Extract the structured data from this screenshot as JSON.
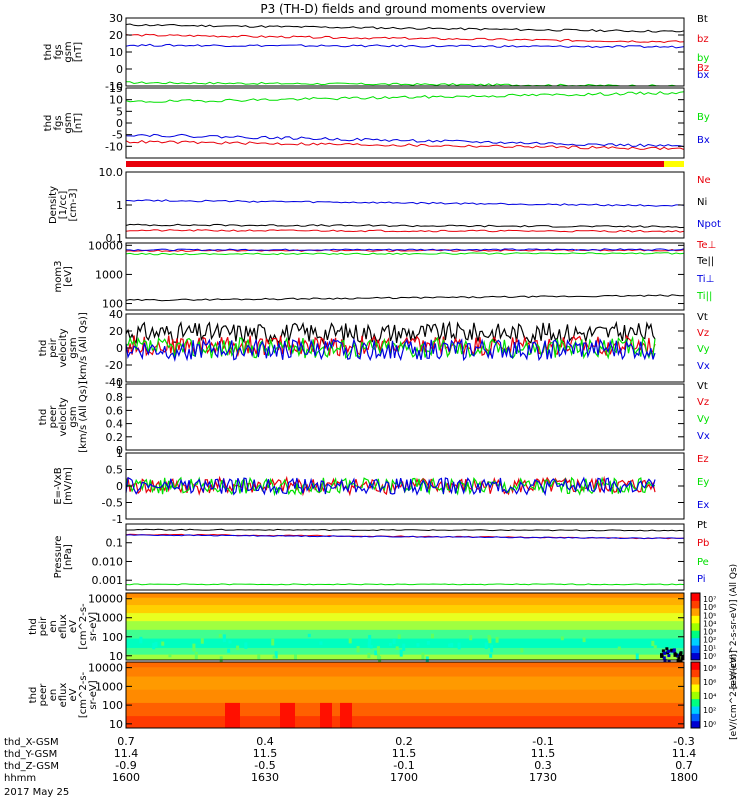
{
  "title": "P3 (TH-D) fields and ground moments overview",
  "colors": {
    "black": "#000000",
    "red": "#e8000b",
    "green": "#00e000",
    "blue": "#0000e0",
    "yellow": "#ffff00"
  },
  "chart_data": [
    {
      "type": "line",
      "id": "p1",
      "ylabel": [
        "thd",
        "fgs",
        "gsm",
        "[nT]"
      ],
      "ylim": [
        -10,
        30
      ],
      "yticks": [
        -10,
        0,
        10,
        20,
        30
      ],
      "series": [
        {
          "name": "Bt",
          "color": "black",
          "start": 26,
          "end": 22
        },
        {
          "name": "bz",
          "color": "red",
          "start": 20,
          "end": 16
        },
        {
          "name": "by",
          "color": "green",
          "start": -8,
          "end": -10
        },
        {
          "name": "bx",
          "color": "blue",
          "start": 14,
          "end": 13
        }
      ]
    },
    {
      "type": "line",
      "id": "p2",
      "ylabel": [
        "thd",
        "fgs",
        "gsm",
        "[nT]"
      ],
      "ylim": [
        -15,
        15
      ],
      "yticks": [
        -10,
        -5,
        0,
        5,
        10,
        15
      ],
      "series": [
        {
          "name": "Bz",
          "color": "red",
          "start": -8,
          "end": -11
        },
        {
          "name": "By",
          "color": "green",
          "start": 9,
          "end": 13
        },
        {
          "name": "Bx",
          "color": "blue",
          "start": -5,
          "end": -10
        }
      ]
    },
    {
      "type": "line",
      "id": "p3",
      "ylabel": [
        "Density",
        "[1/cc]",
        "[cm-3]"
      ],
      "scale": "log",
      "ylim": [
        0.1,
        10
      ],
      "yticks": [
        0.1,
        1.0,
        10.0
      ],
      "series": [
        {
          "name": "Ne",
          "color": "red",
          "start": 0.17,
          "end": 0.16
        },
        {
          "name": "Ni",
          "color": "black",
          "start": 0.25,
          "end": 0.22
        },
        {
          "name": "Npot",
          "color": "blue",
          "start": 1.4,
          "end": 0.95
        }
      ]
    },
    {
      "type": "line",
      "id": "p4",
      "ylabel": [
        "mom3",
        "[eV]"
      ],
      "scale": "log",
      "ylim": [
        60,
        12000
      ],
      "yticks": [
        100,
        1000,
        10000
      ],
      "series": [
        {
          "name": "Te⊥",
          "color": "red",
          "start": 6500,
          "end": 6800
        },
        {
          "name": "Te||",
          "color": "black",
          "start": 130,
          "end": 190
        },
        {
          "name": "Ti⊥",
          "color": "blue",
          "start": 7000,
          "end": 7200
        },
        {
          "name": "Ti||",
          "color": "green",
          "start": 5000,
          "end": 5300
        }
      ]
    },
    {
      "type": "line",
      "id": "p5",
      "ylabel": [
        "thd",
        "peir",
        "velocity",
        "gsm",
        "[km/s (All Qs)]"
      ],
      "ylim": [
        -40,
        40
      ],
      "yticks": [
        -40,
        -20,
        0,
        20,
        40
      ],
      "series": [
        {
          "name": "Vt",
          "color": "black",
          "start": 18,
          "end": 18
        },
        {
          "name": "Vz",
          "color": "red",
          "start": 3,
          "end": 3
        },
        {
          "name": "Vy",
          "color": "green",
          "start": 0,
          "end": 0
        },
        {
          "name": "Vx",
          "color": "blue",
          "start": -2,
          "end": -2
        }
      ]
    },
    {
      "type": "line",
      "id": "p6",
      "ylabel": [
        "thd",
        "peer",
        "velocity",
        "gsm",
        "[km/s (All Qs)]"
      ],
      "ylim": [
        0,
        1
      ],
      "yticks": [
        0.0,
        0.2,
        0.4,
        0.6,
        0.8,
        1.0
      ],
      "series": [
        {
          "name": "Vt",
          "color": "black"
        },
        {
          "name": "Vz",
          "color": "red"
        },
        {
          "name": "Vy",
          "color": "green"
        },
        {
          "name": "Vx",
          "color": "blue"
        }
      ]
    },
    {
      "type": "line",
      "id": "p7",
      "ylabel": [
        "E=-VxB",
        "[mV/m]"
      ],
      "ylim": [
        -1,
        1
      ],
      "yticks": [
        -1.0,
        -0.5,
        0.0,
        0.5,
        1.0
      ],
      "series": [
        {
          "name": "Ez",
          "color": "red",
          "start": 0,
          "end": 0
        },
        {
          "name": "Ey",
          "color": "green",
          "start": 0,
          "end": 0
        },
        {
          "name": "Ex",
          "color": "blue",
          "start": 0,
          "end": 0
        }
      ]
    },
    {
      "type": "line",
      "id": "p8",
      "ylabel": [
        "Pressure",
        "[nPa]"
      ],
      "scale": "log",
      "ylim": [
        0.0003,
        1
      ],
      "yticks": [
        0.001,
        0.01,
        0.1
      ],
      "series": [
        {
          "name": "Pt",
          "color": "black",
          "start": 0.5,
          "end": 0.45
        },
        {
          "name": "Pb",
          "color": "red",
          "start": 0.28,
          "end": 0.17
        },
        {
          "name": "Pe",
          "color": "green",
          "start": 0.0006,
          "end": 0.0006
        },
        {
          "name": "Pi",
          "color": "blue",
          "start": 0.26,
          "end": 0.17
        }
      ]
    },
    {
      "type": "heatmap",
      "id": "p9",
      "ylabel": [
        "thd",
        "peir",
        "en",
        "eflux",
        "eV",
        "[cm^2-s-",
        "sr-eV]"
      ],
      "scale": "log",
      "ylim": [
        6,
        20000
      ],
      "yticks": [
        10,
        100,
        1000,
        10000
      ],
      "colorbar": {
        "label": "[eV/(cm^2-s-sr-eV)] (All Qs)",
        "ticks": [
          "10⁷",
          "10⁶",
          "10⁵",
          "10⁴",
          "10³",
          "10²",
          "10¹",
          "10⁰"
        ]
      }
    },
    {
      "type": "heatmap",
      "id": "p10",
      "ylabel": [
        "thd",
        "peer",
        "en",
        "eflux",
        "eV",
        "[cm^2-s-",
        "sr-eV]"
      ],
      "scale": "log",
      "ylim": [
        6,
        20000
      ],
      "yticks": [
        10,
        100,
        1000,
        10000
      ],
      "colorbar": {
        "label": "[eV/(cm^2-s-sr-eV)]",
        "ticks": [
          "10⁸",
          "10⁶",
          "10⁴",
          "10²",
          "10⁰"
        ]
      }
    }
  ],
  "xaxis": {
    "rows": [
      {
        "label": "thd_X-GSM",
        "values": [
          "0.7",
          "0.4",
          "0.2",
          "-0.1",
          "-0.3"
        ]
      },
      {
        "label": "thd_Y-GSM",
        "values": [
          "11.4",
          "11.5",
          "11.5",
          "11.5",
          "11.4"
        ]
      },
      {
        "label": "thd_Z-GSM",
        "values": [
          "-0.9",
          "-0.5",
          "-0.1",
          "0.3",
          "0.7"
        ]
      },
      {
        "label": "hhmm",
        "values": [
          "1600",
          "1630",
          "1700",
          "1730",
          "1800"
        ]
      }
    ],
    "date": "2017 May 25"
  }
}
